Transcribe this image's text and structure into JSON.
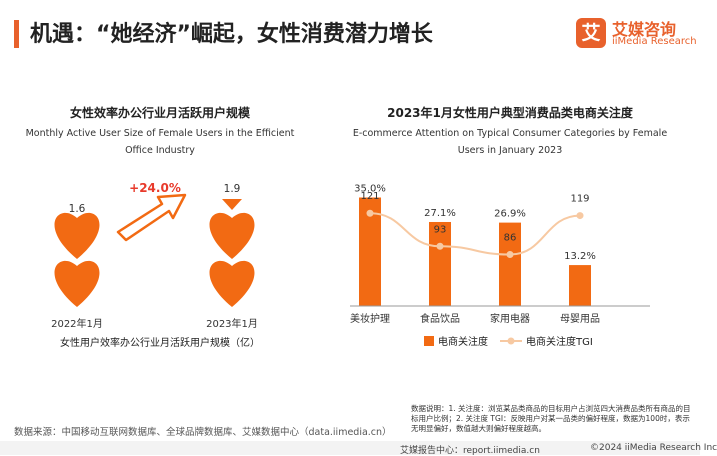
{
  "header": {
    "title": "机遇：“她经济”崛起，女性消费潜力增长",
    "logo_name": "艾媒咨询",
    "logo_sub": "iiMedia Research",
    "logo_glyph": "艾"
  },
  "colors": {
    "accent": "#e8612c",
    "bar": "#f26a13",
    "line": "#f7c9a2"
  },
  "chart_data": [
    {
      "type": "bar",
      "title": "女性效率办公行业月活跃用户规模",
      "subtitle": "Monthly Active User Size of Female Users in the Efficient Office Industry",
      "categories": [
        "2022年1月",
        "2023年1月"
      ],
      "series": [
        {
          "name": "女性用户效率办公行业月活跃用户规模（亿）",
          "values": [
            1.6,
            1.9
          ]
        }
      ],
      "annotation": "+24.0%"
    },
    {
      "type": "bar",
      "title": "2023年1月女性用户典型消费品类电商关注度",
      "subtitle": "E-commerce Attention on Typical Consumer Categories by Female Users in January 2023",
      "categories": [
        "美妆护理",
        "食品饮品",
        "家用电器",
        "母婴用品"
      ],
      "series": [
        {
          "name": "电商关注度",
          "type": "bar",
          "values": [
            35.0,
            27.1,
            26.9,
            13.2
          ],
          "labels": [
            "35.0%",
            "27.1%",
            "26.9%",
            "13.2%"
          ]
        },
        {
          "name": "电商关注度TGI",
          "type": "line",
          "values": [
            121,
            93,
            86,
            119
          ]
        }
      ]
    }
  ],
  "footer": {
    "source": "数据来源：中国移动互联网数据库、全球品牌数据库、艾媒数据中心（data.iimedia.cn）",
    "note": "数据说明：1. 关注度：浏览某品类商品的目标用户占浏览四大消费品类所有商品的目标用户比例；2. 关注度 TGI：反映用户对某一品类的偏好程度，数据为100时，表示无明显偏好，数值越大则偏好程度越高。",
    "left": "艾媒报告中心：report.iimedia.cn",
    "right": "©2024  iiMedia Research  Inc"
  }
}
